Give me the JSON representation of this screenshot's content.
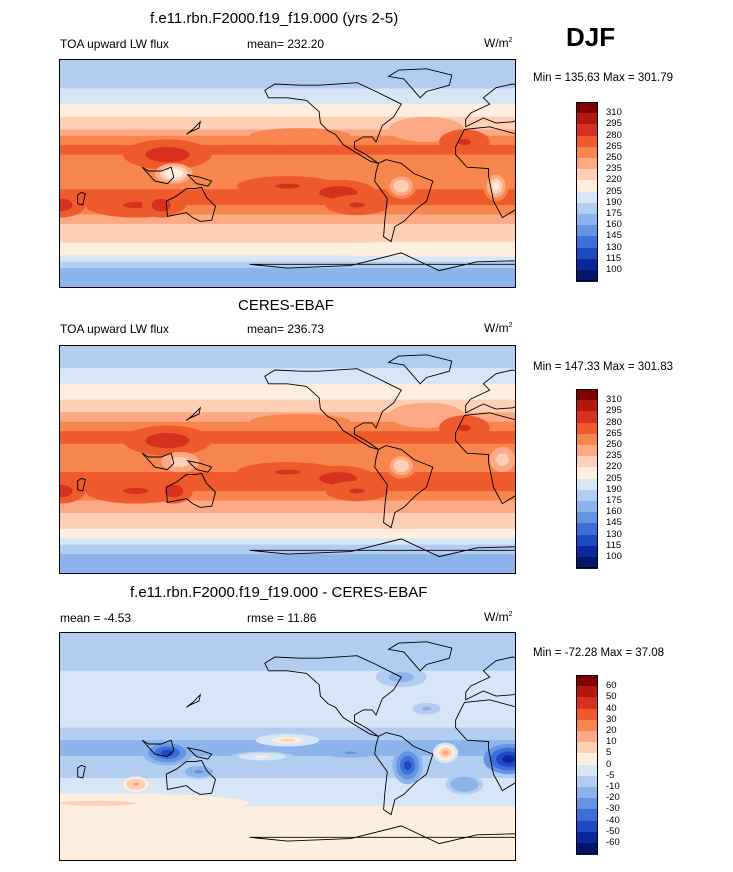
{
  "season": "DJF",
  "panels": [
    {
      "title": "f.e11.rbn.F2000.f19_f19.000 (yrs 2-5)",
      "left_label": "TOA upward LW flux",
      "center_label": "mean= 232.20",
      "units_base": "W/m",
      "units_exp": "2",
      "minmax": "Min = 135.63 Max = 301.79"
    },
    {
      "title": "CERES-EBAF",
      "left_label": "TOA upward LW flux",
      "center_label": "mean= 236.73",
      "units_base": "W/m",
      "units_exp": "2",
      "minmax": "Min = 147.33 Max = 301.83"
    },
    {
      "title": "f.e11.rbn.F2000.f19_f19.000 - CERES-EBAF",
      "left_label": "mean =  -4.53",
      "center_label": "rmse =  11.86",
      "units_base": "W/m",
      "units_exp": "2",
      "minmax": "Min = -72.28 Max =  37.08"
    }
  ],
  "chart_data": [
    {
      "type": "heatmap",
      "title": "f.e11.rbn.F2000.f19_f19.000 (yrs 2-5)",
      "variable": "TOA upward LW flux",
      "mean": 232.2,
      "min": 135.63,
      "max": 301.79,
      "colorbar_levels": [
        310,
        295,
        280,
        265,
        250,
        235,
        220,
        205,
        190,
        175,
        160,
        145,
        130,
        115,
        100
      ],
      "colorbar_colors": [
        "#7f0000",
        "#b2180e",
        "#d7301f",
        "#ef5a2d",
        "#f7864e",
        "#fcaa86",
        "#fdd0b5",
        "#fdeede",
        "#d6e6f6",
        "#b3cdf1",
        "#8db4ea",
        "#6595e2",
        "#3c6fd8",
        "#1f49c2",
        "#0b279e",
        "#031569"
      ],
      "lat_band_profile": {
        "lat": [
          80,
          60,
          40,
          20,
          0,
          -20,
          -40,
          -60,
          -80
        ],
        "value": [
          175,
          200,
          225,
          270,
          250,
          275,
          235,
          215,
          165
        ]
      }
    },
    {
      "type": "heatmap",
      "title": "CERES-EBAF",
      "variable": "TOA upward LW flux",
      "mean": 236.73,
      "min": 147.33,
      "max": 301.83,
      "colorbar_levels": [
        310,
        295,
        280,
        265,
        250,
        235,
        220,
        205,
        190,
        175,
        160,
        145,
        130,
        115,
        100
      ],
      "colorbar_colors": [
        "#7f0000",
        "#b2180e",
        "#d7301f",
        "#ef5a2d",
        "#f7864e",
        "#fcaa86",
        "#fdd0b5",
        "#fdeede",
        "#d6e6f6",
        "#b3cdf1",
        "#8db4ea",
        "#6595e2",
        "#3c6fd8",
        "#1f49c2",
        "#0b279e",
        "#031569"
      ],
      "lat_band_profile": {
        "lat": [
          80,
          60,
          40,
          20,
          0,
          -20,
          -40,
          -60,
          -80
        ],
        "value": [
          180,
          205,
          228,
          272,
          255,
          275,
          238,
          212,
          160
        ]
      }
    },
    {
      "type": "heatmap",
      "title": "f.e11.rbn.F2000.f19_f19.000 - CERES-EBAF",
      "variable": "TOA upward LW flux difference",
      "mean": -4.53,
      "rmse": 11.86,
      "min": -72.28,
      "max": 37.08,
      "colorbar_levels": [
        60,
        50,
        40,
        30,
        20,
        10,
        5,
        0,
        -5,
        -10,
        -20,
        -30,
        -40,
        -50,
        -60
      ],
      "colorbar_colors": [
        "#7f0000",
        "#b2180e",
        "#d7301f",
        "#ef5a2d",
        "#f7864e",
        "#fcaa86",
        "#fdd0b5",
        "#fdeede",
        "#d6e6f6",
        "#b3cdf1",
        "#8db4ea",
        "#6595e2",
        "#3c6fd8",
        "#1f49c2",
        "#0b279e",
        "#031569"
      ],
      "lat_band_profile": {
        "lat": [
          80,
          60,
          40,
          20,
          0,
          -20,
          -40,
          -60,
          -80
        ],
        "value": [
          -8,
          -5,
          -3,
          -2,
          -12,
          -6,
          -2,
          4,
          1
        ]
      }
    }
  ]
}
